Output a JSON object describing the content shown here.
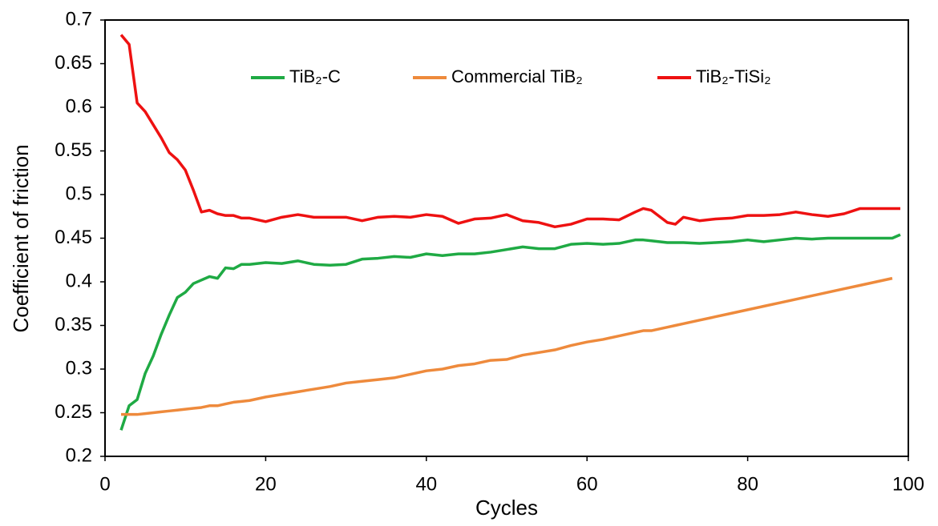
{
  "chart_data": {
    "type": "line",
    "x_label": "Cycles",
    "y_label": "Coefficient of friction",
    "x": [
      2,
      3,
      4,
      5,
      6,
      7,
      8,
      9,
      10,
      11,
      12,
      13,
      14,
      15,
      16,
      17,
      18,
      20,
      22,
      24,
      26,
      28,
      30,
      32,
      34,
      36,
      38,
      40,
      42,
      44,
      46,
      48,
      50,
      52,
      54,
      56,
      58,
      60,
      62,
      64,
      66,
      67,
      68,
      70,
      71,
      72,
      74,
      76,
      78,
      80,
      82,
      84,
      86,
      88,
      90,
      92,
      94,
      96,
      98,
      99
    ],
    "series": [
      {
        "name": "TiB₂-C",
        "color": "#1faa44",
        "values": [
          0.23,
          0.258,
          0.265,
          0.295,
          0.315,
          0.34,
          0.362,
          0.382,
          0.388,
          0.398,
          0.402,
          0.406,
          0.404,
          0.416,
          0.415,
          0.42,
          0.42,
          0.422,
          0.421,
          0.424,
          0.42,
          0.419,
          0.42,
          0.426,
          0.427,
          0.429,
          0.428,
          0.432,
          0.43,
          0.432,
          0.432,
          0.434,
          0.437,
          0.44,
          0.438,
          0.438,
          0.443,
          0.444,
          0.443,
          0.444,
          0.448,
          0.448,
          0.447,
          0.445,
          0.445,
          0.445,
          0.444,
          0.445,
          0.446,
          0.448,
          0.446,
          0.448,
          0.45,
          0.449,
          0.45,
          0.45,
          0.45,
          0.45,
          0.45,
          0.454
        ]
      },
      {
        "name": "Commercial TiB₂",
        "color": "#ee8a3c",
        "values": [
          0.248,
          0.248,
          0.248,
          0.249,
          0.25,
          0.251,
          0.252,
          0.253,
          0.254,
          0.255,
          0.256,
          0.258,
          0.258,
          0.26,
          0.262,
          0.263,
          0.264,
          0.268,
          0.271,
          0.274,
          0.277,
          0.28,
          0.284,
          0.286,
          0.288,
          0.29,
          0.294,
          0.298,
          0.3,
          0.304,
          0.306,
          0.31,
          0.311,
          0.316,
          0.319,
          0.322,
          0.327,
          0.331,
          0.334,
          0.338,
          0.342,
          0.344,
          0.344,
          0.348,
          0.35,
          0.352,
          0.356,
          0.36,
          0.364,
          0.368,
          0.372,
          0.376,
          0.38,
          0.384,
          0.388,
          0.392,
          0.396,
          0.4,
          0.404,
          null
        ]
      },
      {
        "name": "TiB₂-TiSi₂",
        "color": "#ee1111",
        "values": [
          0.683,
          0.672,
          0.605,
          0.595,
          0.58,
          0.565,
          0.548,
          0.54,
          0.528,
          0.505,
          0.48,
          0.482,
          0.478,
          0.476,
          0.476,
          0.473,
          0.473,
          0.469,
          0.474,
          0.477,
          0.474,
          0.474,
          0.474,
          0.47,
          0.474,
          0.475,
          0.474,
          0.477,
          0.475,
          0.467,
          0.472,
          0.473,
          0.477,
          0.47,
          0.468,
          0.463,
          0.466,
          0.472,
          0.472,
          0.471,
          0.48,
          0.484,
          0.482,
          0.468,
          0.466,
          0.474,
          0.47,
          0.472,
          0.473,
          0.476,
          0.476,
          0.477,
          0.48,
          0.477,
          0.475,
          0.478,
          0.484,
          0.484,
          0.484,
          0.484
        ]
      }
    ],
    "xlim": [
      0,
      100
    ],
    "xticks": [
      0,
      20,
      40,
      60,
      80,
      100
    ],
    "ylim": [
      0.2,
      0.7
    ],
    "yticks": [
      0.2,
      0.25,
      0.3,
      0.35,
      0.4,
      0.45,
      0.5,
      0.55,
      0.6,
      0.65,
      0.7
    ]
  }
}
